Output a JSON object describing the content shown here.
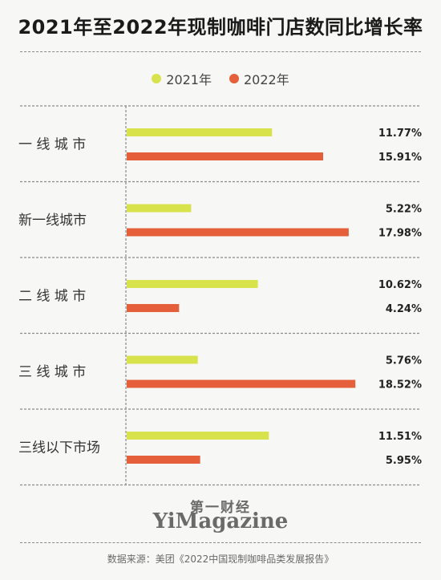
{
  "colors": {
    "series_2021": "#d8e24a",
    "series_2022": "#e5603a",
    "text": "#222222",
    "axis": "#8a8a8a"
  },
  "chart_data": {
    "type": "bar",
    "orientation": "horizontal",
    "title": "2021年至2022年现制咖啡门店数同比增长率",
    "categories": [
      "一 线 城 市",
      "新一线城市",
      "二 线 城 市",
      "三 线 城 市",
      "三线以下市场"
    ],
    "series": [
      {
        "name": "2021年",
        "values": [
          11.77,
          5.22,
          10.62,
          5.76,
          11.51
        ],
        "labels": [
          "11.77%",
          "5.22%",
          "10.62%",
          "5.76%",
          "11.51%"
        ]
      },
      {
        "name": "2022年",
        "values": [
          15.91,
          17.98,
          4.24,
          18.52,
          5.95
        ],
        "labels": [
          "15.91%",
          "17.98%",
          "4.24%",
          "18.52%",
          "5.95%"
        ]
      }
    ],
    "xlim": [
      0,
      20
    ],
    "legend": "top-center",
    "grid": false
  },
  "branding": {
    "cn": "第一财经",
    "en": "YiMagazine"
  },
  "source": "数据来源：美团《2022中国现制咖啡品类发展报告》"
}
